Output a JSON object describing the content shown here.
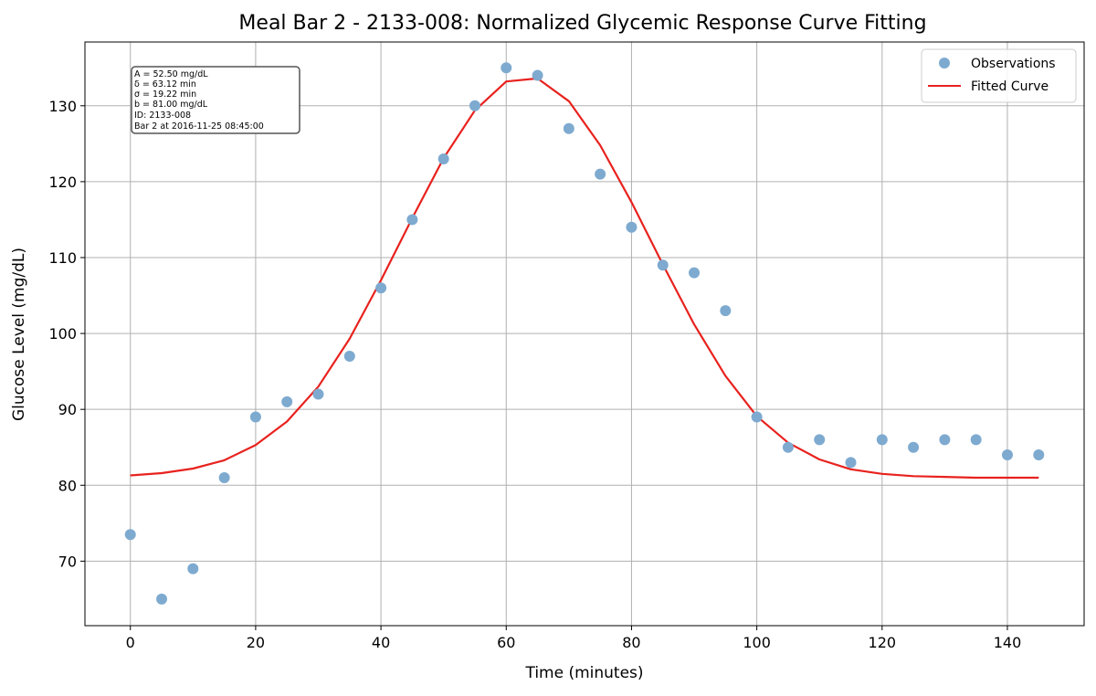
{
  "chart_data": {
    "type": "scatter",
    "title": "Meal Bar 2 - 2133-008: Normalized Glycemic Response Curve Fitting",
    "xlabel": "Time (minutes)",
    "ylabel": "Glucose Level (mg/dL)",
    "xlim": [
      -7.25,
      152.25
    ],
    "ylim": [
      61.5,
      138.4
    ],
    "xticks": [
      0,
      20,
      40,
      60,
      80,
      100,
      120,
      140
    ],
    "yticks": [
      70,
      80,
      90,
      100,
      110,
      120,
      130
    ],
    "grid": true,
    "legend_position": "top-right",
    "colors": {
      "observations": "#7eaad0",
      "fitted_curve": "#e8221e",
      "grid": "#b0b0b0"
    },
    "parameters": [
      "A = 52.50 mg/dL",
      "δ = 63.12 min",
      "σ = 19.22 min",
      "b = 81.00 mg/dL",
      "ID: 2133-008",
      "Bar 2 at 2016-11-25 08:45:00"
    ],
    "series": [
      {
        "name": "Observations",
        "kind": "scatter",
        "x": [
          0,
          5,
          10,
          15,
          20,
          25,
          30,
          35,
          40,
          45,
          50,
          55,
          60,
          65,
          70,
          75,
          80,
          85,
          90,
          95,
          100,
          105,
          110,
          115,
          120,
          125,
          130,
          135,
          140,
          145
        ],
        "y": [
          73.5,
          65,
          69,
          81,
          89,
          91,
          92,
          97,
          106,
          115,
          123,
          130,
          135,
          134,
          127,
          121,
          114,
          109,
          108,
          103,
          89,
          85,
          86,
          83,
          86,
          85,
          86,
          86,
          84,
          84
        ]
      },
      {
        "name": "Fitted Curve",
        "kind": "line",
        "x": [
          0,
          5,
          10,
          15,
          20,
          25,
          30,
          35,
          40,
          45,
          50,
          55,
          60,
          65,
          70,
          75,
          80,
          85,
          90,
          95,
          100,
          105,
          110,
          115,
          120,
          125,
          130,
          135,
          140,
          145
        ],
        "y": [
          81.3,
          81.6,
          82.2,
          83.3,
          85.3,
          88.4,
          93.0,
          99.3,
          107.0,
          115.2,
          123.1,
          129.4,
          133.2,
          133.6,
          130.6,
          124.8,
          117.3,
          109.1,
          101.2,
          94.4,
          89.1,
          85.6,
          83.4,
          82.1,
          81.5,
          81.2,
          81.1,
          81.0,
          81.0,
          81.0
        ]
      }
    ]
  }
}
